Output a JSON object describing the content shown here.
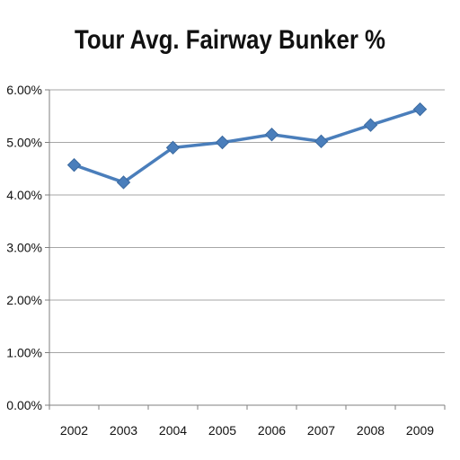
{
  "chart_data": {
    "type": "line",
    "title": "Tour Avg. Fairway Bunker %",
    "xlabel": "",
    "ylabel": "",
    "categories": [
      "2002",
      "2003",
      "2004",
      "2005",
      "2006",
      "2007",
      "2008",
      "2009"
    ],
    "series": [
      {
        "values": [
          4.57,
          4.24,
          4.9,
          5.0,
          5.15,
          5.02,
          5.33,
          5.63
        ],
        "color": "#4a7ebb",
        "marker": "diamond"
      }
    ],
    "ylim": [
      0,
      6
    ],
    "yticks": [
      0,
      1,
      2,
      3,
      4,
      5,
      6
    ],
    "ytick_labels": [
      "0.00%",
      "1.00%",
      "2.00%",
      "3.00%",
      "4.00%",
      "5.00%",
      "6.00%"
    ],
    "grid": true,
    "grid_color": "#a6a6a6",
    "legend": false
  }
}
